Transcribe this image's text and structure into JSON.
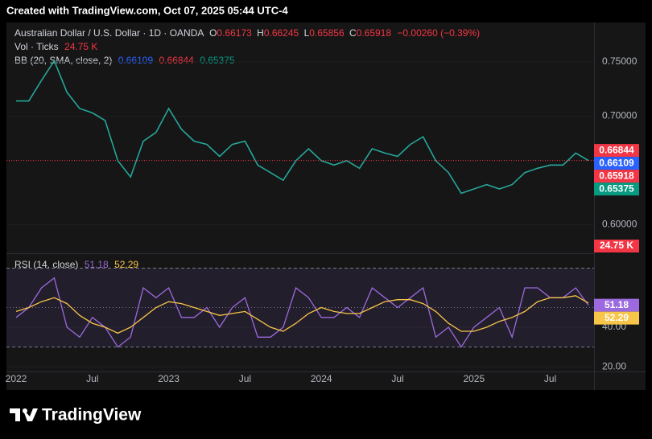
{
  "header": {
    "created": "Created with TradingView.com, Oct 07, 2025 05:44 UTC-4",
    "ohlc": [
      {
        "key": "O",
        "value": "0.66173"
      },
      {
        "key": "H",
        "value": "0.66245"
      },
      {
        "key": "L",
        "value": "0.65856"
      },
      {
        "key": "C",
        "value": "0.65918"
      }
    ],
    "change": "−0.00260 (−0.39%)",
    "volume": {
      "title": "Vol · Ticks",
      "last": "24.75 K"
    },
    "bb": {
      "title": "BB (20, SMA, close, 2)",
      "values": [
        "0.66109",
        "0.66844",
        "0.65375"
      ]
    }
  },
  "chart_data": [
    {
      "type": "line",
      "title": "Australian Dollar / U.S. Dollar · 1D · OANDA",
      "color": "#26a69a",
      "values": [
        0.714,
        0.714,
        0.733,
        0.751,
        0.722,
        0.707,
        0.703,
        0.696,
        0.659,
        0.644,
        0.677,
        0.685,
        0.707,
        0.688,
        0.677,
        0.674,
        0.663,
        0.674,
        0.677,
        0.655,
        0.648,
        0.641,
        0.659,
        0.67,
        0.659,
        0.655,
        0.659,
        0.652,
        0.67,
        0.666,
        0.663,
        0.674,
        0.681,
        0.659,
        0.648,
        0.629,
        0.633,
        0.637,
        0.633,
        0.637,
        0.648,
        0.652,
        0.655,
        0.655,
        0.666,
        0.65918
      ],
      "ylim": [
        0.5752,
        0.7848
      ],
      "yticks": [
        {
          "value": 0.75,
          "label": "0.75000"
        },
        {
          "value": 0.7,
          "label": "0.70000"
        },
        {
          "value": 0.6,
          "label": "0.60000"
        }
      ],
      "price_tags": [
        {
          "value": 0.66844,
          "label": "0.66844",
          "color": "#f23645"
        },
        {
          "value": 0.66109,
          "label": "0.66109",
          "color": "#2962ff"
        },
        {
          "value": 0.65918,
          "label": "0.65918",
          "color": "#f23645"
        },
        {
          "value": 0.65375,
          "label": "0.65375",
          "color": "#089981"
        }
      ]
    },
    {
      "type": "line",
      "title": "RSI (14, close)",
      "categories": [
        "2022",
        null,
        null,
        null,
        null,
        null,
        "Jul",
        null,
        null,
        null,
        null,
        null,
        "2023",
        null,
        null,
        null,
        null,
        null,
        "Jul",
        null,
        null,
        null,
        null,
        null,
        "2024",
        null,
        null,
        null,
        null,
        null,
        "Jul",
        null,
        null,
        null,
        null,
        null,
        "2025",
        null,
        null,
        null,
        null,
        null,
        "Jul",
        null,
        null,
        null
      ],
      "series": [
        {
          "color": "#9c6ade",
          "values": [
            45,
            50,
            60,
            65,
            40,
            35,
            45,
            40,
            30,
            35,
            60,
            55,
            60,
            45,
            45,
            50,
            40,
            50,
            55,
            35,
            35,
            40,
            60,
            55,
            45,
            45,
            50,
            45,
            60,
            55,
            50,
            55,
            60,
            35,
            40,
            30,
            40,
            45,
            50,
            35,
            60,
            60,
            55,
            55,
            60,
            51.18
          ]
        },
        {
          "color": "#f7c548",
          "values": [
            48,
            50,
            53,
            55,
            52,
            46,
            42,
            40,
            37,
            40,
            45,
            50,
            53,
            52,
            50,
            48,
            46,
            47,
            48,
            44,
            40,
            38,
            42,
            47,
            50,
            48,
            47,
            47,
            50,
            53,
            54,
            54,
            52,
            48,
            42,
            38,
            38,
            40,
            43,
            45,
            48,
            53,
            55,
            55,
            56,
            52.29
          ]
        }
      ],
      "ylim": [
        17.6,
        76.3
      ],
      "yticks": [
        {
          "value": 40,
          "label": "40.00"
        },
        {
          "value": 20,
          "label": "20.00"
        }
      ],
      "band_lines": [
        70,
        50,
        30
      ],
      "last_values": [
        {
          "value": 51.18,
          "label": "51.18",
          "color": "#9c6ade"
        },
        {
          "value": 52.29,
          "label": "52.29",
          "color": "#f7c548"
        }
      ]
    }
  ],
  "footer": {
    "brand": "TradingView"
  }
}
